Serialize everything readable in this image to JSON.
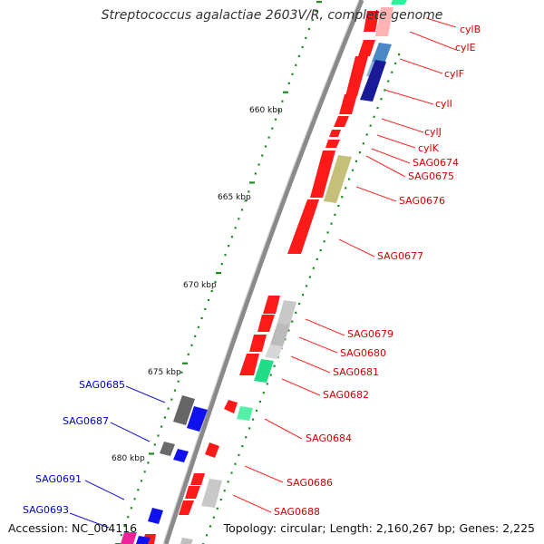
{
  "title": "Streptococcus agalactiae 2603V/R, complete genome",
  "accession": "Accession: NC_004116",
  "topology": "Topology: circular; Length: 2,160,267 bp; Genes: 2,225",
  "colors": {
    "backbone": "#8a8a8a",
    "tick": "#1f8a1f",
    "forward_label": "#d40000",
    "reverse_label": "#0000cc",
    "label_line_forward": "#ff2a2a",
    "label_line_reverse": "#1a1acc"
  },
  "scale_labels": [
    {
      "text": "660 kbp"
    },
    {
      "text": "665 kbp"
    },
    {
      "text": "670 kbp"
    },
    {
      "text": "675 kbp"
    },
    {
      "text": "680 kbp"
    }
  ],
  "gene_labels_forward": [
    {
      "text": "cylB"
    },
    {
      "text": "cylE"
    },
    {
      "text": "cylF"
    },
    {
      "text": "cylI"
    },
    {
      "text": "cylJ"
    },
    {
      "text": "cylK"
    },
    {
      "text": "SAG0674"
    },
    {
      "text": "SAG0675"
    },
    {
      "text": "SAG0676"
    },
    {
      "text": "SAG0677"
    },
    {
      "text": "SAG0679"
    },
    {
      "text": "SAG0680"
    },
    {
      "text": "SAG0681"
    },
    {
      "text": "SAG0682"
    },
    {
      "text": "SAG0684"
    },
    {
      "text": "SAG0686"
    },
    {
      "text": "SAG0688"
    }
  ],
  "gene_labels_reverse": [
    {
      "text": "SAG0685"
    },
    {
      "text": "SAG0687"
    },
    {
      "text": "SAG0691"
    },
    {
      "text": "SAG0693"
    }
  ]
}
